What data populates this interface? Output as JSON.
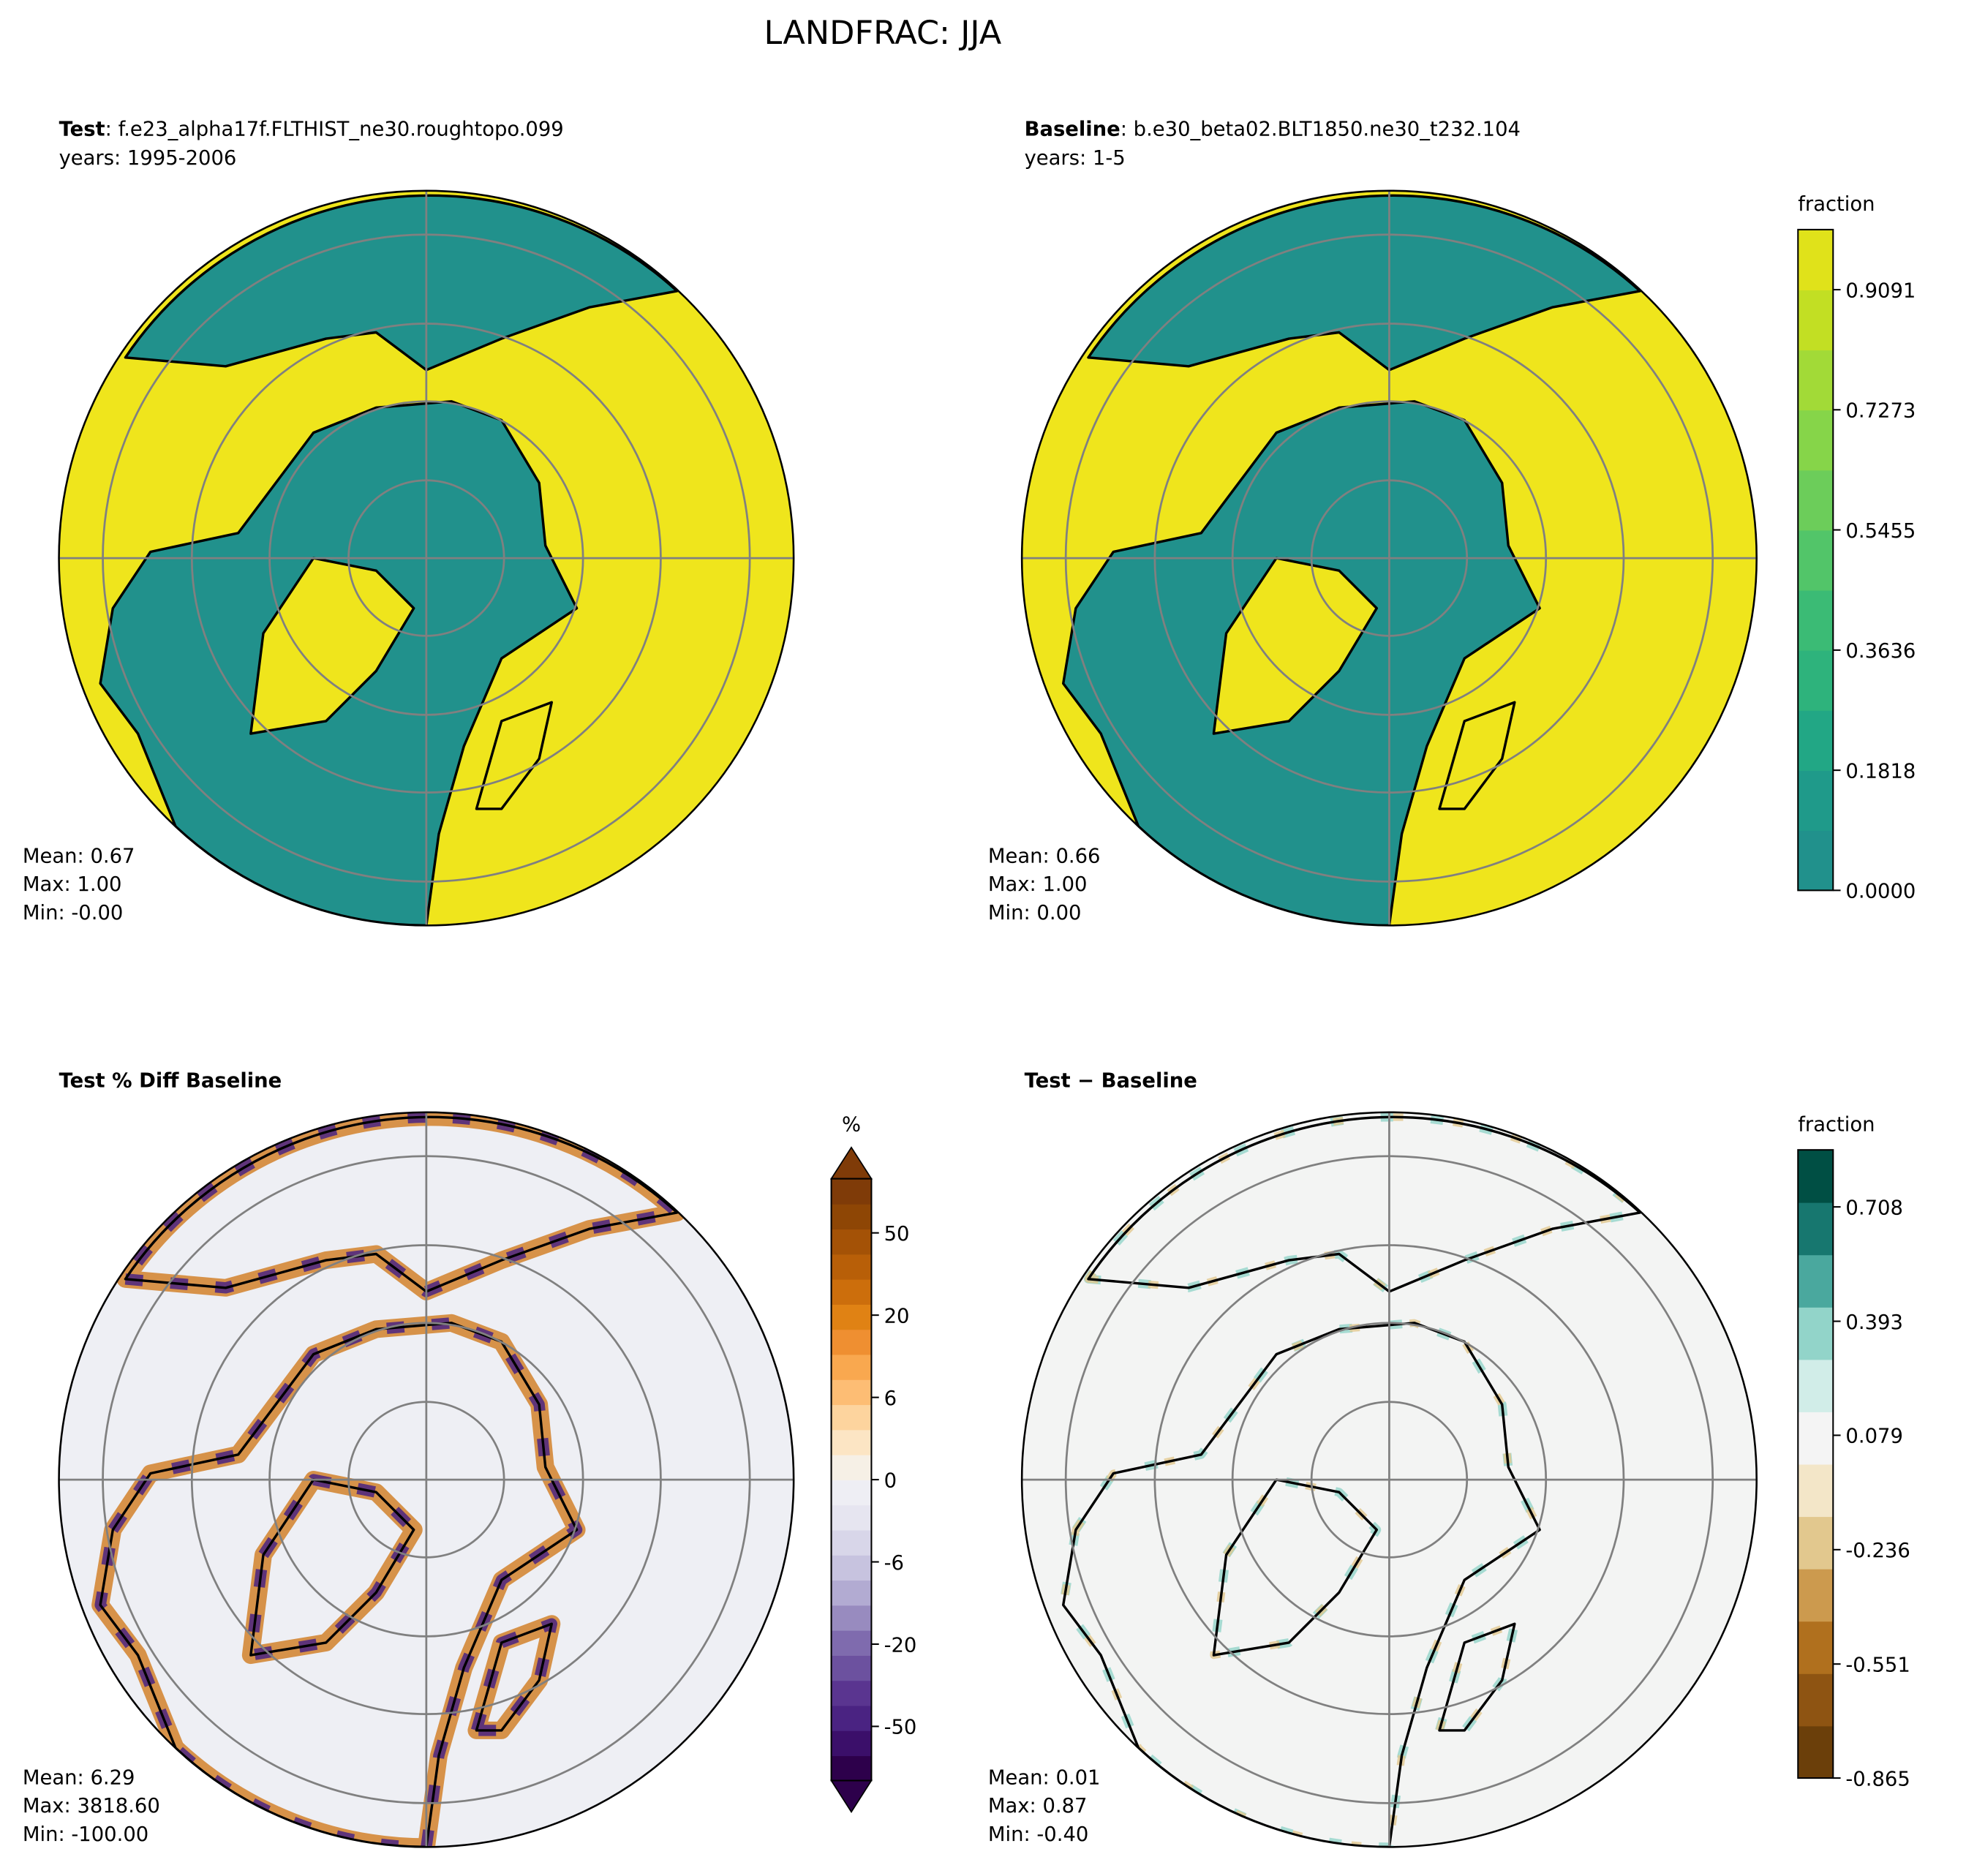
{
  "title": "LANDFRAC: JJA",
  "panels": [
    {
      "label": "Test",
      "case": ": f.e23_alpha17f.FLTHIST_ne30.roughtopo.099",
      "years": "years: 1995-2006",
      "stats": [
        "Mean:  0.67",
        "Max:  1.00",
        "Min: -0.00"
      ]
    },
    {
      "label": "Baseline",
      "case": ": b.e30_beta02.BLT1850.ne30_t232.104",
      "years": "years: 1-5",
      "stats": [
        "Mean:  0.66",
        "Max:  1.00",
        "Min:  0.00"
      ]
    },
    {
      "label": "Test % Diff Baseline",
      "stats": [
        "Mean:  6.29",
        "Max: 3818.60",
        "Min: -100.00"
      ]
    },
    {
      "label": "Test − Baseline",
      "stats": [
        "Mean:  0.01",
        "Max:  0.87",
        "Min: -0.40"
      ]
    }
  ],
  "colorbars": [
    {
      "label": "fraction",
      "lim": [
        0,
        1
      ],
      "ticks": [
        {
          "value": 0,
          "label": "0.0000"
        },
        0.1818,
        0.3636,
        0.5455,
        0.7273,
        0.9091
      ],
      "colors": [
        "#21918c",
        "#1f9a8a",
        "#22a785",
        "#2eb37c",
        "#3bbb75",
        "#52c569",
        "#6ccd5a",
        "#86d549",
        "#a2da37",
        "#c2df23",
        "#e0e21a"
      ]
    },
    {
      "label": "%",
      "extend": "both",
      "ticks": [
        -50,
        -20,
        -6,
        0,
        6,
        20,
        50
      ],
      "colors": [
        "#2d004b",
        "#3b0f6a",
        "#4a2382",
        "#5a3590",
        "#6c519f",
        "#7f6bae",
        "#988bbf",
        "#b2abd2",
        "#c7c3df",
        "#d8d6e9",
        "#e6e5f0",
        "#eeeef4",
        "#f6f0e6",
        "#fce5c4",
        "#fdd49e",
        "#fdbd74",
        "#f9a84f",
        "#ef8f31",
        "#e08214",
        "#cc6e0c",
        "#b85f08",
        "#a45206",
        "#8e4605",
        "#7f3b08"
      ]
    },
    {
      "label": "fraction",
      "lim": [
        -0.865,
        0.865
      ],
      "ticks": [
        -0.865,
        -0.551,
        -0.236,
        0.079,
        0.393,
        0.708
      ],
      "colors": [
        "#6b3f0a",
        "#8e5412",
        "#b0701e",
        "#cc9a4e",
        "#e2c88e",
        "#f3e6c8",
        "#f4f4f4",
        "#d1ede8",
        "#92d4c9",
        "#4aa89e",
        "#17776f",
        "#004f44"
      ]
    }
  ]
}
